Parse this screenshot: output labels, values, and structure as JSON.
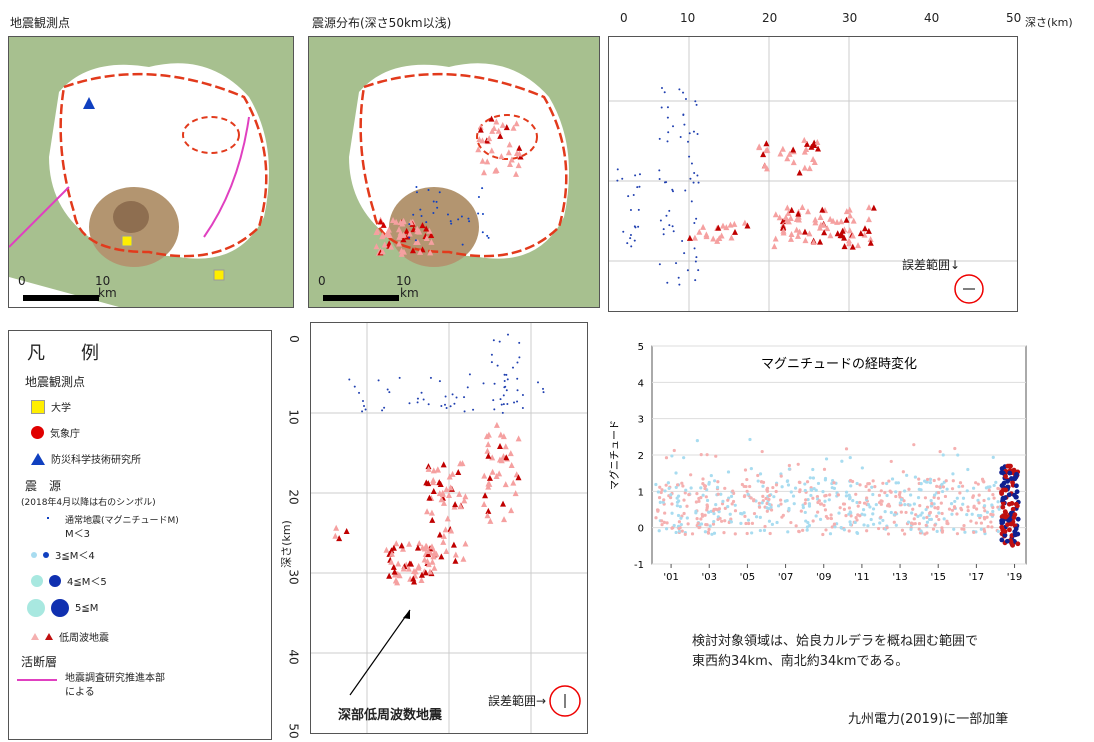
{
  "titles": {
    "map1": "地震観測点",
    "map2": "震源分布(深さ50km以浅)"
  },
  "scalebar": {
    "zero": "0",
    "ten": "10",
    "unit": "km"
  },
  "depth_axis_right": {
    "ticks": [
      "0",
      "10",
      "20",
      "30",
      "40",
      "50"
    ],
    "label": "深さ(km)"
  },
  "depth_axis_left": {
    "ticks": [
      "0",
      "10",
      "20",
      "30",
      "40",
      "50"
    ],
    "label": "深さ(km)"
  },
  "error_label_right": "誤差範囲↓",
  "error_label_left": "誤差範囲→",
  "callout": "深部低周波数地震",
  "legend": {
    "title": "凡　　例",
    "stations_head": "地震観測点",
    "university": "大学",
    "jma": "気象庁",
    "nied": "防災科学技術研究所",
    "source_head": "震　源",
    "source_note": "(2018年4月以降は右のシンボル)",
    "normal": "通常地震(マグニチュードM)",
    "normal2": "M＜3",
    "m3": "3≦M＜4",
    "m4": "4≦M＜5",
    "m5": "5≦M",
    "lf": "低周波地震",
    "fault_head": "活断層",
    "fault1": "地震調査研究推進本部",
    "fault2": "による",
    "colors": {
      "univ": "#ffee00",
      "jma": "#e00000",
      "nied": "#1040c0",
      "fault": "#e040c0"
    }
  },
  "chart_data": {
    "type": "scatter",
    "title": "マグニチュードの経時変化",
    "ylabel": "マグニチュード",
    "xlabel": "",
    "x_ticks": [
      "'01",
      "'03",
      "'05",
      "'07",
      "'09",
      "'11",
      "'13",
      "'15",
      "'17",
      "'19"
    ],
    "y_ticks": [
      "-1",
      "0",
      "1",
      "2",
      "3",
      "4",
      "5"
    ],
    "ylim": [
      -1,
      5
    ],
    "xlim": [
      2000,
      2019.6
    ],
    "grid": true,
    "series_colors": {
      "normal": "#a8dcf0",
      "lf": "#f5b0b0",
      "new_normal": "#102090",
      "new_lf": "#c01010"
    }
  },
  "notes": {
    "line1": "検討対象領域は、姶良カルデラを概ね囲む範囲で",
    "line2": "東西約34km、南北約34kmである。",
    "source": "九州電力(2019)に一部加筆"
  }
}
